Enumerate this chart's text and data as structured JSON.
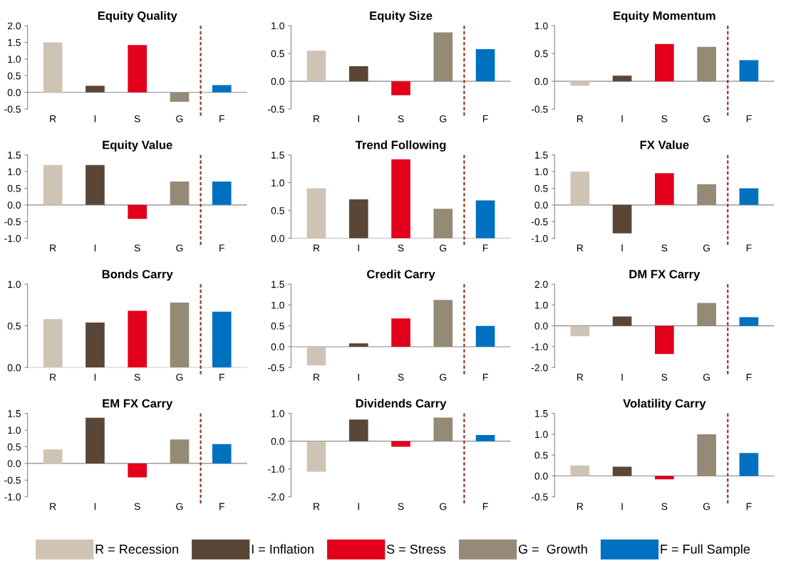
{
  "chart_data": [
    {
      "type": "bar",
      "title": "Equity Quality",
      "legend": "bottom",
      "categories": [
        "R",
        "I",
        "S",
        "G",
        "F"
      ],
      "ylim": [
        -0.5,
        2.0
      ],
      "yticks": [
        {
          "value": -0.5,
          "label": "-0.5"
        },
        {
          "value": 0,
          "label": "0.0"
        },
        {
          "value": 0.5,
          "label": "0.5"
        },
        {
          "value": 1,
          "label": "1.0"
        },
        {
          "value": 1.5,
          "label": "1.5"
        },
        {
          "value": 2,
          "label": "2.0"
        }
      ],
      "series": [
        {
          "name": "R = Recession",
          "color": "#cfc4b4",
          "values": [
            1.5,
            null,
            null,
            null,
            null
          ]
        },
        {
          "name": "I = Inflation",
          "color": "#5a4636",
          "values": [
            null,
            0.2,
            null,
            null,
            null
          ]
        },
        {
          "name": "S = Stress",
          "color": "#e2001a",
          "values": [
            null,
            null,
            1.42,
            null,
            null
          ]
        },
        {
          "name": "G =  Growth",
          "color": "#958a75",
          "values": [
            null,
            null,
            null,
            -0.28,
            null
          ]
        },
        {
          "name": "F = Full Sample",
          "color": "#0070c0",
          "values": [
            null,
            null,
            null,
            null,
            0.22
          ]
        }
      ]
    },
    {
      "type": "bar",
      "title": "Equity Size",
      "categories": [
        "R",
        "I",
        "S",
        "G",
        "F"
      ],
      "ylim": [
        -0.5,
        1.0
      ],
      "yticks": [
        {
          "value": -0.5,
          "label": "-0.5"
        },
        {
          "value": 0,
          "label": "0.0"
        },
        {
          "value": 0.5,
          "label": "0.5"
        },
        {
          "value": 1,
          "label": "1.0"
        }
      ],
      "series": [
        {
          "color": "#cfc4b4",
          "values": [
            0.55,
            null,
            null,
            null,
            null
          ]
        },
        {
          "color": "#5a4636",
          "values": [
            null,
            0.27,
            null,
            null,
            null
          ]
        },
        {
          "color": "#e2001a",
          "values": [
            null,
            null,
            -0.25,
            null,
            null
          ]
        },
        {
          "color": "#958a75",
          "values": [
            null,
            null,
            null,
            0.88,
            null
          ]
        },
        {
          "color": "#0070c0",
          "values": [
            null,
            null,
            null,
            null,
            0.58
          ]
        }
      ]
    },
    {
      "type": "bar",
      "title": "Equity Momentum",
      "categories": [
        "R",
        "I",
        "S",
        "G",
        "F"
      ],
      "ylim": [
        -0.5,
        1.0
      ],
      "yticks": [
        {
          "value": -0.5,
          "label": "-0.5"
        },
        {
          "value": 0,
          "label": "0.0"
        },
        {
          "value": 0.5,
          "label": "0.5"
        },
        {
          "value": 1,
          "label": "1.0"
        }
      ],
      "series": [
        {
          "color": "#cfc4b4",
          "values": [
            -0.08,
            null,
            null,
            null,
            null
          ]
        },
        {
          "color": "#5a4636",
          "values": [
            null,
            0.1,
            null,
            null,
            null
          ]
        },
        {
          "color": "#e2001a",
          "values": [
            null,
            null,
            0.67,
            null,
            null
          ]
        },
        {
          "color": "#958a75",
          "values": [
            null,
            null,
            null,
            0.62,
            null
          ]
        },
        {
          "color": "#0070c0",
          "values": [
            null,
            null,
            null,
            null,
            0.38
          ]
        }
      ]
    },
    {
      "type": "bar",
      "title": "Equity Value",
      "categories": [
        "R",
        "I",
        "S",
        "G",
        "F"
      ],
      "ylim": [
        -1.0,
        1.5
      ],
      "yticks": [
        {
          "value": -1,
          "label": "-1.0"
        },
        {
          "value": -0.5,
          "label": "-0.5"
        },
        {
          "value": 0,
          "label": "0.0"
        },
        {
          "value": 0.5,
          "label": "0.5"
        },
        {
          "value": 1,
          "label": "1.0"
        },
        {
          "value": 1.5,
          "label": "1.5"
        }
      ],
      "series": [
        {
          "color": "#cfc4b4",
          "values": [
            1.2,
            null,
            null,
            null,
            null
          ]
        },
        {
          "color": "#5a4636",
          "values": [
            null,
            1.2,
            null,
            null,
            null
          ]
        },
        {
          "color": "#e2001a",
          "values": [
            null,
            null,
            -0.42,
            null,
            null
          ]
        },
        {
          "color": "#958a75",
          "values": [
            null,
            null,
            null,
            0.7,
            null
          ]
        },
        {
          "color": "#0070c0",
          "values": [
            null,
            null,
            null,
            null,
            0.7
          ]
        }
      ]
    },
    {
      "type": "bar",
      "title": "Trend Following",
      "categories": [
        "R",
        "I",
        "S",
        "G",
        "F"
      ],
      "ylim": [
        0,
        1.5
      ],
      "yticks": [
        {
          "value": 0,
          "label": "0.0"
        },
        {
          "value": 0.5,
          "label": "0.5"
        },
        {
          "value": 1,
          "label": "1.0"
        },
        {
          "value": 1.5,
          "label": "1.5"
        }
      ],
      "series": [
        {
          "color": "#cfc4b4",
          "values": [
            0.9,
            null,
            null,
            null,
            null
          ]
        },
        {
          "color": "#5a4636",
          "values": [
            null,
            0.7,
            null,
            null,
            null
          ]
        },
        {
          "color": "#e2001a",
          "values": [
            null,
            null,
            1.42,
            null,
            null
          ]
        },
        {
          "color": "#958a75",
          "values": [
            null,
            null,
            null,
            0.53,
            null
          ]
        },
        {
          "color": "#0070c0",
          "values": [
            null,
            null,
            null,
            null,
            0.68
          ]
        }
      ]
    },
    {
      "type": "bar",
      "title": "FX Value",
      "categories": [
        "R",
        "I",
        "S",
        "G",
        "F"
      ],
      "ylim": [
        -1.0,
        1.5
      ],
      "yticks": [
        {
          "value": -1,
          "label": "-1.0"
        },
        {
          "value": -0.5,
          "label": "-0.5"
        },
        {
          "value": 0,
          "label": "0.0"
        },
        {
          "value": 0.5,
          "label": "0.5"
        },
        {
          "value": 1,
          "label": "1.0"
        },
        {
          "value": 1.5,
          "label": "1.5"
        }
      ],
      "series": [
        {
          "color": "#cfc4b4",
          "values": [
            1.0,
            null,
            null,
            null,
            null
          ]
        },
        {
          "color": "#5a4636",
          "values": [
            null,
            -0.85,
            null,
            null,
            null
          ]
        },
        {
          "color": "#e2001a",
          "values": [
            null,
            null,
            0.95,
            null,
            null
          ]
        },
        {
          "color": "#958a75",
          "values": [
            null,
            null,
            null,
            0.62,
            null
          ]
        },
        {
          "color": "#0070c0",
          "values": [
            null,
            null,
            null,
            null,
            0.5
          ]
        }
      ]
    },
    {
      "type": "bar",
      "title": "Bonds Carry",
      "categories": [
        "R",
        "I",
        "S",
        "G",
        "F"
      ],
      "ylim": [
        0,
        1.0
      ],
      "yticks": [
        {
          "value": 0,
          "label": "0.0"
        },
        {
          "value": 0.5,
          "label": "0.5"
        },
        {
          "value": 1,
          "label": "1.0"
        }
      ],
      "series": [
        {
          "color": "#cfc4b4",
          "values": [
            0.58,
            null,
            null,
            null,
            null
          ]
        },
        {
          "color": "#5a4636",
          "values": [
            null,
            0.54,
            null,
            null,
            null
          ]
        },
        {
          "color": "#e2001a",
          "values": [
            null,
            null,
            0.68,
            null,
            null
          ]
        },
        {
          "color": "#958a75",
          "values": [
            null,
            null,
            null,
            0.78,
            null
          ]
        },
        {
          "color": "#0070c0",
          "values": [
            null,
            null,
            null,
            null,
            0.67
          ]
        }
      ]
    },
    {
      "type": "bar",
      "title": "Credit Carry",
      "categories": [
        "R",
        "I",
        "S",
        "G",
        "F"
      ],
      "ylim": [
        -0.5,
        1.5
      ],
      "yticks": [
        {
          "value": -0.5,
          "label": "-0.5"
        },
        {
          "value": 0,
          "label": "0.0"
        },
        {
          "value": 0.5,
          "label": "0.5"
        },
        {
          "value": 1,
          "label": "1.0"
        },
        {
          "value": 1.5,
          "label": "1.5"
        }
      ],
      "series": [
        {
          "color": "#cfc4b4",
          "values": [
            -0.45,
            null,
            null,
            null,
            null
          ]
        },
        {
          "color": "#5a4636",
          "values": [
            null,
            0.08,
            null,
            null,
            null
          ]
        },
        {
          "color": "#e2001a",
          "values": [
            null,
            null,
            0.68,
            null,
            null
          ]
        },
        {
          "color": "#958a75",
          "values": [
            null,
            null,
            null,
            1.12,
            null
          ]
        },
        {
          "color": "#0070c0",
          "values": [
            null,
            null,
            null,
            null,
            0.5
          ]
        }
      ]
    },
    {
      "type": "bar",
      "title": "DM FX Carry",
      "categories": [
        "R",
        "I",
        "S",
        "G",
        "F"
      ],
      "ylim": [
        -2.0,
        2.0
      ],
      "yticks": [
        {
          "value": -2,
          "label": "-2.0"
        },
        {
          "value": -1,
          "label": "-1.0"
        },
        {
          "value": 0,
          "label": "0.0"
        },
        {
          "value": 1,
          "label": "1.0"
        },
        {
          "value": 2,
          "label": "2.0"
        }
      ],
      "series": [
        {
          "color": "#cfc4b4",
          "values": [
            -0.5,
            null,
            null,
            null,
            null
          ]
        },
        {
          "color": "#5a4636",
          "values": [
            null,
            0.45,
            null,
            null,
            null
          ]
        },
        {
          "color": "#e2001a",
          "values": [
            null,
            null,
            -1.35,
            null,
            null
          ]
        },
        {
          "color": "#958a75",
          "values": [
            null,
            null,
            null,
            1.1,
            null
          ]
        },
        {
          "color": "#0070c0",
          "values": [
            null,
            null,
            null,
            null,
            0.42
          ]
        }
      ]
    },
    {
      "type": "bar",
      "title": "EM FX Carry",
      "categories": [
        "R",
        "I",
        "S",
        "G",
        "F"
      ],
      "ylim": [
        -1.0,
        1.5
      ],
      "yticks": [
        {
          "value": -1,
          "label": "-1.0"
        },
        {
          "value": -0.5,
          "label": "-0.5"
        },
        {
          "value": 0,
          "label": "0.0"
        },
        {
          "value": 0.5,
          "label": "0.5"
        },
        {
          "value": 1,
          "label": "1.0"
        },
        {
          "value": 1.5,
          "label": "1.5"
        }
      ],
      "series": [
        {
          "color": "#cfc4b4",
          "values": [
            0.42,
            null,
            null,
            null,
            null
          ]
        },
        {
          "color": "#5a4636",
          "values": [
            null,
            1.37,
            null,
            null,
            null
          ]
        },
        {
          "color": "#e2001a",
          "values": [
            null,
            null,
            -0.42,
            null,
            null
          ]
        },
        {
          "color": "#958a75",
          "values": [
            null,
            null,
            null,
            0.72,
            null
          ]
        },
        {
          "color": "#0070c0",
          "values": [
            null,
            null,
            null,
            null,
            0.58
          ]
        }
      ]
    },
    {
      "type": "bar",
      "title": "Dividends Carry",
      "categories": [
        "R",
        "I",
        "S",
        "G",
        "F"
      ],
      "ylim": [
        -2.0,
        1.0
      ],
      "yticks": [
        {
          "value": -2,
          "label": "-2.0"
        },
        {
          "value": -1,
          "label": "-1.0"
        },
        {
          "value": 0,
          "label": "0.0"
        },
        {
          "value": 1,
          "label": "1.0"
        }
      ],
      "series": [
        {
          "color": "#cfc4b4",
          "values": [
            -1.1,
            null,
            null,
            null,
            null
          ]
        },
        {
          "color": "#5a4636",
          "values": [
            null,
            0.78,
            null,
            null,
            null
          ]
        },
        {
          "color": "#e2001a",
          "values": [
            null,
            null,
            -0.2,
            null,
            null
          ]
        },
        {
          "color": "#958a75",
          "values": [
            null,
            null,
            null,
            0.85,
            null
          ]
        },
        {
          "color": "#0070c0",
          "values": [
            null,
            null,
            null,
            null,
            0.22
          ]
        }
      ]
    },
    {
      "type": "bar",
      "title": "Volatility Carry",
      "categories": [
        "R",
        "I",
        "S",
        "G",
        "F"
      ],
      "ylim": [
        -0.5,
        1.5
      ],
      "yticks": [
        {
          "value": -0.5,
          "label": "-0.5"
        },
        {
          "value": 0,
          "label": "0.0"
        },
        {
          "value": 0.5,
          "label": "0.5"
        },
        {
          "value": 1,
          "label": "1.0"
        },
        {
          "value": 1.5,
          "label": "1.5"
        }
      ],
      "series": [
        {
          "color": "#cfc4b4",
          "values": [
            0.25,
            null,
            null,
            null,
            null
          ]
        },
        {
          "color": "#5a4636",
          "values": [
            null,
            0.22,
            null,
            null,
            null
          ]
        },
        {
          "color": "#e2001a",
          "values": [
            null,
            null,
            -0.08,
            null,
            null
          ]
        },
        {
          "color": "#958a75",
          "values": [
            null,
            null,
            null,
            1.0,
            null
          ]
        },
        {
          "color": "#0070c0",
          "values": [
            null,
            null,
            null,
            null,
            0.55
          ]
        }
      ]
    }
  ]
}
